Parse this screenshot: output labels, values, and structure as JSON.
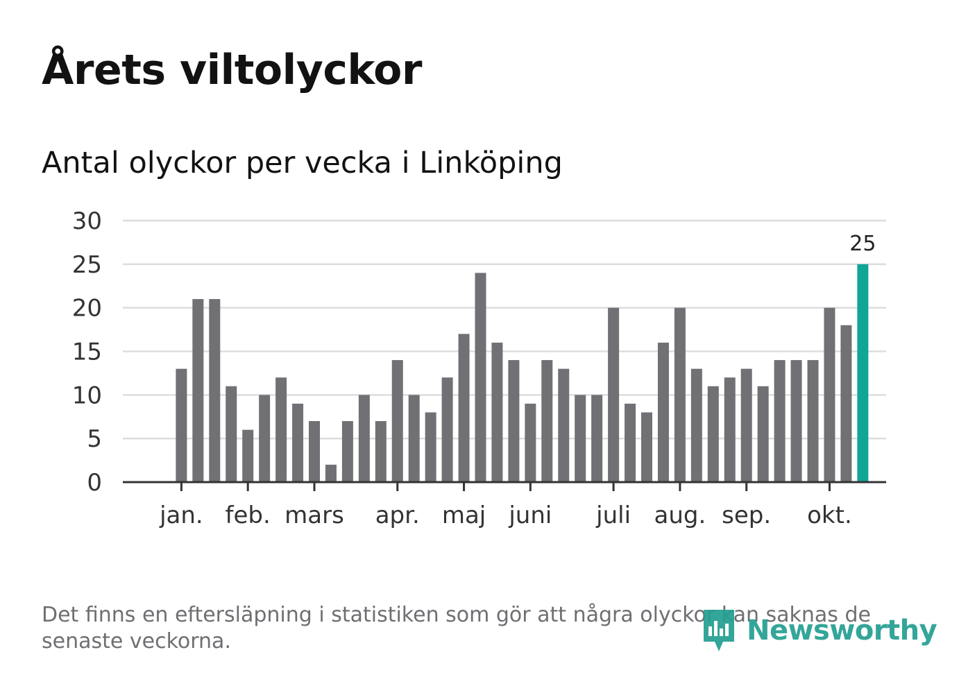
{
  "header": {
    "title": "Årets viltolyckor",
    "subtitle": "Antal olyckor per vecka i Linköping"
  },
  "footer": {
    "note": "Det finns en eftersläpning i statistiken som gör att några olyckor kan saknas de senaste veckorna.",
    "brand": "Newsworthy"
  },
  "colors": {
    "bar": "#707075",
    "highlight": "#10a597",
    "grid": "#dddddd",
    "axis": "#333333",
    "brand": "#239e91"
  },
  "chart_data": {
    "type": "bar",
    "title": "Antal olyckor per vecka i Linköping",
    "xlabel": "",
    "ylabel": "",
    "ylim": [
      0,
      30
    ],
    "yticks": [
      0,
      5,
      10,
      15,
      20,
      25,
      30
    ],
    "grid": true,
    "weeks": [
      1,
      2,
      3,
      4,
      5,
      6,
      7,
      8,
      9,
      10,
      11,
      12,
      13,
      14,
      15,
      16,
      17,
      18,
      19,
      20,
      21,
      22,
      23,
      24,
      25,
      26,
      27,
      28,
      29,
      30,
      31,
      32,
      33,
      34,
      35,
      36,
      37,
      38,
      39,
      40,
      41,
      42,
      43,
      44,
      45,
      46,
      47
    ],
    "values": [
      null,
      null,
      13,
      21,
      21,
      11,
      6,
      10,
      12,
      9,
      7,
      2,
      7,
      10,
      7,
      14,
      10,
      8,
      12,
      17,
      24,
      16,
      14,
      9,
      14,
      13,
      10,
      10,
      20,
      9,
      8,
      16,
      20,
      13,
      11,
      12,
      13,
      11,
      14,
      14,
      14,
      20,
      18,
      25,
      null,
      null,
      null
    ],
    "months": [
      {
        "label": "jan.",
        "week": 3
      },
      {
        "label": "feb.",
        "week": 7
      },
      {
        "label": "mars",
        "week": 11
      },
      {
        "label": "apr.",
        "week": 16
      },
      {
        "label": "maj",
        "week": 20
      },
      {
        "label": "juni",
        "week": 24
      },
      {
        "label": "juli",
        "week": 29
      },
      {
        "label": "aug.",
        "week": 33
      },
      {
        "label": "sep.",
        "week": 37
      },
      {
        "label": "okt.",
        "week": 42
      }
    ],
    "highlight_last": true,
    "last_value_label": "25"
  }
}
